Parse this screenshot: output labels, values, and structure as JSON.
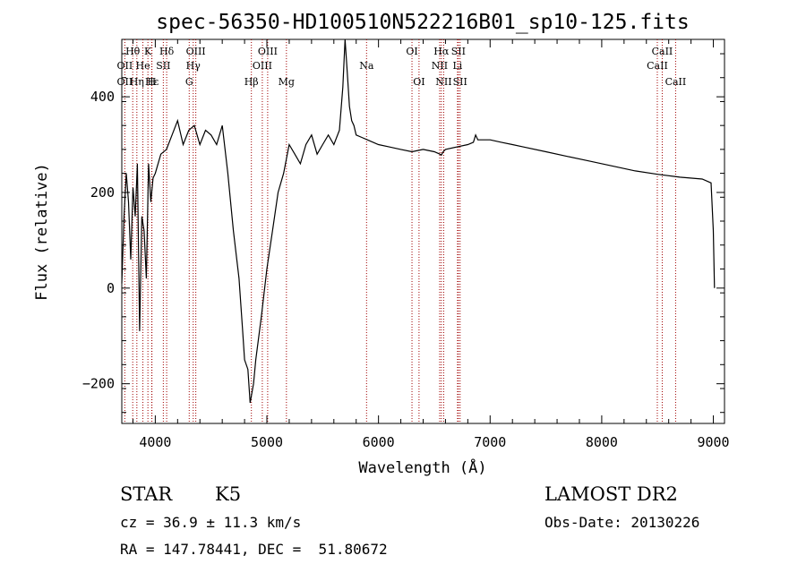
{
  "chart_data": {
    "type": "line",
    "title": "spec-56350-HD100510N522216B01_sp10-125.fits",
    "xlabel": "Wavelength (Å)",
    "ylabel": "Flux (relative)",
    "xlim": [
      3700,
      9100
    ],
    "ylim": [
      -283,
      520
    ],
    "x_ticks": [
      4000,
      5000,
      6000,
      7000,
      8000,
      9000
    ],
    "y_ticks": [
      -200,
      0,
      200,
      400
    ],
    "x_tick_labels": [
      "4000",
      "5000",
      "6000",
      "7000",
      "8000",
      "9000"
    ],
    "y_tick_labels": [
      "−200",
      "0",
      "200",
      "400"
    ],
    "grid": false,
    "series": [
      {
        "color": "#000000",
        "x": [
          3700,
          3720,
          3740,
          3760,
          3780,
          3800,
          3820,
          3840,
          3860,
          3880,
          3900,
          3920,
          3940,
          3960,
          3980,
          4000,
          4050,
          4100,
          4150,
          4200,
          4250,
          4300,
          4350,
          4400,
          4450,
          4500,
          4550,
          4600,
          4650,
          4700,
          4750,
          4780,
          4800,
          4830,
          4850,
          4880,
          4900,
          4950,
          5000,
          5050,
          5100,
          5150,
          5200,
          5250,
          5300,
          5350,
          5400,
          5450,
          5500,
          5550,
          5600,
          5650,
          5680,
          5700,
          5720,
          5740,
          5760,
          5780,
          5800,
          5850,
          5900,
          6000,
          6100,
          6200,
          6300,
          6400,
          6500,
          6550,
          6563,
          6580,
          6600,
          6700,
          6800,
          6850,
          6870,
          6890,
          6920,
          7000,
          7100,
          7200,
          7300,
          7500,
          7700,
          7900,
          8100,
          8300,
          8500,
          8700,
          8900,
          8980,
          9000,
          9010
        ],
        "y": [
          10,
          150,
          240,
          180,
          60,
          210,
          150,
          260,
          -90,
          150,
          120,
          20,
          260,
          180,
          230,
          240,
          280,
          290,
          320,
          350,
          300,
          330,
          340,
          300,
          330,
          320,
          300,
          340,
          240,
          120,
          20,
          -80,
          -150,
          -170,
          -240,
          -200,
          -150,
          -60,
          40,
          120,
          200,
          240,
          300,
          280,
          260,
          300,
          320,
          280,
          300,
          320,
          300,
          330,
          420,
          520,
          450,
          380,
          350,
          340,
          320,
          315,
          310,
          300,
          295,
          290,
          285,
          290,
          285,
          280,
          278,
          285,
          290,
          295,
          300,
          305,
          320,
          310,
          310,
          310,
          305,
          300,
          295,
          285,
          275,
          265,
          255,
          245,
          238,
          232,
          228,
          220,
          120,
          0
        ]
      }
    ],
    "line_labels": [
      {
        "label": "Hθ",
        "x": 3798,
        "row": 1
      },
      {
        "label": "K",
        "x": 3934,
        "row": 1
      },
      {
        "label": "Hδ",
        "x": 4102,
        "row": 1
      },
      {
        "label": "OIII",
        "x": 4363,
        "row": 1
      },
      {
        "label": "OIII",
        "x": 5007,
        "row": 1
      },
      {
        "label": "OI",
        "x": 6300,
        "row": 1
      },
      {
        "label": "Hα",
        "x": 6563,
        "row": 1
      },
      {
        "label": "SII",
        "x": 6716,
        "row": 1
      },
      {
        "label": "CaII",
        "x": 8542,
        "row": 1
      },
      {
        "label": "OII",
        "x": 3727,
        "row": 2
      },
      {
        "label": "He",
        "x": 3889,
        "row": 2
      },
      {
        "label": "SII",
        "x": 4072,
        "row": 2
      },
      {
        "label": "Hγ",
        "x": 4340,
        "row": 2
      },
      {
        "label": "OIII",
        "x": 4959,
        "row": 2
      },
      {
        "label": "Na",
        "x": 5893,
        "row": 2
      },
      {
        "label": "NII",
        "x": 6548,
        "row": 2
      },
      {
        "label": "Li",
        "x": 6708,
        "row": 2
      },
      {
        "label": "CaII",
        "x": 8498,
        "row": 2
      },
      {
        "label": "OII",
        "x": 3727,
        "row": 3
      },
      {
        "label": "Hε",
        "x": 3970,
        "row": 3
      },
      {
        "label": "Hη",
        "x": 3835,
        "row": 3
      },
      {
        "label": "H",
        "x": 3968,
        "row": 3
      },
      {
        "label": "G",
        "x": 4304,
        "row": 3
      },
      {
        "label": "Hβ",
        "x": 4861,
        "row": 3
      },
      {
        "label": "Mg",
        "x": 5175,
        "row": 3
      },
      {
        "label": "OI",
        "x": 6363,
        "row": 3
      },
      {
        "label": "NII",
        "x": 6584,
        "row": 3
      },
      {
        "label": "SII",
        "x": 6731,
        "row": 3
      },
      {
        "label": "CaII",
        "x": 8662,
        "row": 3
      }
    ],
    "line_marker_color": "#a00000"
  },
  "info": {
    "class": "STAR",
    "subclass": "K5",
    "survey": "LAMOST DR2",
    "cz": "cz = 36.9 ± 11.3 km/s",
    "obs_date": "Obs-Date: 20130226",
    "radec": "RA = 147.78441, DEC =  51.80672"
  }
}
